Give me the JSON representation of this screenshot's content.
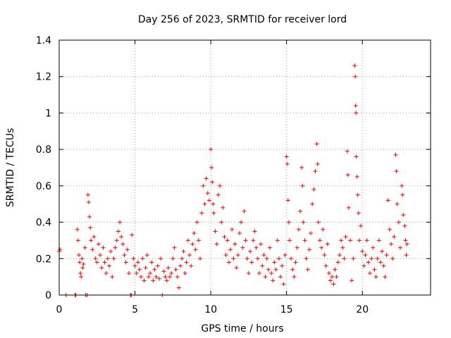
{
  "chart_data": {
    "type": "scatter",
    "title": "Day 256 of 2023, SRMTID for receiver lord",
    "xlabel": "GPS time / hours",
    "ylabel": "SRMTID / TECUs",
    "xlim": [
      0,
      24.5
    ],
    "ylim": [
      0,
      1.4
    ],
    "x_ticks": [
      0,
      5,
      10,
      15,
      20
    ],
    "x_tick_labels": [
      "0",
      "5",
      "10",
      "15",
      "20"
    ],
    "y_ticks": [
      0,
      0.2,
      0.4,
      0.6,
      0.8,
      1.0,
      1.2,
      1.4
    ],
    "y_tick_labels": [
      "0",
      "0.2",
      "0.4",
      "0.6",
      "0.8",
      "1",
      "1.2",
      "1.4"
    ],
    "grid": true,
    "marker": "plus",
    "color": "#ff0000",
    "series": [
      {
        "name": "SRMTID",
        "points": [
          [
            0.0,
            0.24
          ],
          [
            0.05,
            0.25
          ],
          [
            0.45,
            0.0
          ],
          [
            1.05,
            0.0
          ],
          [
            1.1,
            0.0
          ],
          [
            1.75,
            0.0
          ],
          [
            1.85,
            0.0
          ],
          [
            4.7,
            0.0
          ],
          [
            4.75,
            0.0
          ],
          [
            6.8,
            0.0
          ],
          [
            1.2,
            0.36
          ],
          [
            1.25,
            0.3
          ],
          [
            1.3,
            0.22
          ],
          [
            1.35,
            0.18
          ],
          [
            1.4,
            0.12
          ],
          [
            1.45,
            0.1
          ],
          [
            1.5,
            0.2
          ],
          [
            1.55,
            0.15
          ],
          [
            1.6,
            0.17
          ],
          [
            1.7,
            0.26
          ],
          [
            1.9,
            0.55
          ],
          [
            1.95,
            0.51
          ],
          [
            2.0,
            0.43
          ],
          [
            2.05,
            0.37
          ],
          [
            2.1,
            0.3
          ],
          [
            2.2,
            0.25
          ],
          [
            2.3,
            0.32
          ],
          [
            2.4,
            0.2
          ],
          [
            2.5,
            0.18
          ],
          [
            2.6,
            0.28
          ],
          [
            2.7,
            0.22
          ],
          [
            2.8,
            0.15
          ],
          [
            2.9,
            0.26
          ],
          [
            3.0,
            0.18
          ],
          [
            3.1,
            0.12
          ],
          [
            3.2,
            0.2
          ],
          [
            3.3,
            0.16
          ],
          [
            3.4,
            0.24
          ],
          [
            3.5,
            0.1
          ],
          [
            3.6,
            0.2
          ],
          [
            3.7,
            0.26
          ],
          [
            3.8,
            0.3
          ],
          [
            3.9,
            0.35
          ],
          [
            4.0,
            0.4
          ],
          [
            4.1,
            0.32
          ],
          [
            4.2,
            0.28
          ],
          [
            4.3,
            0.22
          ],
          [
            4.4,
            0.18
          ],
          [
            4.5,
            0.25
          ],
          [
            4.6,
            0.12
          ],
          [
            4.8,
            0.33
          ],
          [
            4.9,
            0.2
          ],
          [
            5.0,
            0.16
          ],
          [
            5.1,
            0.12
          ],
          [
            5.2,
            0.18
          ],
          [
            5.3,
            0.14
          ],
          [
            5.4,
            0.1
          ],
          [
            5.5,
            0.2
          ],
          [
            5.6,
            0.08
          ],
          [
            5.7,
            0.15
          ],
          [
            5.8,
            0.22
          ],
          [
            5.9,
            0.1
          ],
          [
            6.0,
            0.12
          ],
          [
            6.1,
            0.18
          ],
          [
            6.2,
            0.08
          ],
          [
            6.3,
            0.14
          ],
          [
            6.4,
            0.1
          ],
          [
            6.5,
            0.16
          ],
          [
            6.6,
            0.09
          ],
          [
            6.7,
            0.2
          ],
          [
            6.9,
            0.13
          ],
          [
            7.0,
            0.1
          ],
          [
            7.1,
            0.08
          ],
          [
            7.2,
            0.15
          ],
          [
            7.3,
            0.1
          ],
          [
            7.4,
            0.12
          ],
          [
            7.5,
            0.2
          ],
          [
            7.6,
            0.26
          ],
          [
            7.7,
            0.14
          ],
          [
            7.8,
            0.1
          ],
          [
            7.9,
            0.04
          ],
          [
            8.0,
            0.16
          ],
          [
            8.1,
            0.2
          ],
          [
            8.2,
            0.24
          ],
          [
            8.3,
            0.12
          ],
          [
            8.4,
            0.18
          ],
          [
            8.5,
            0.3
          ],
          [
            8.6,
            0.22
          ],
          [
            8.7,
            0.16
          ],
          [
            8.8,
            0.28
          ],
          [
            8.9,
            0.34
          ],
          [
            9.0,
            0.25
          ],
          [
            9.1,
            0.4
          ],
          [
            9.2,
            0.3
          ],
          [
            9.3,
            0.2
          ],
          [
            9.4,
            0.45
          ],
          [
            9.5,
            0.6
          ],
          [
            9.6,
            0.5
          ],
          [
            9.7,
            0.64
          ],
          [
            9.8,
            0.56
          ],
          [
            9.9,
            0.52
          ],
          [
            10.0,
            0.8
          ],
          [
            10.05,
            0.7
          ],
          [
            10.1,
            0.62
          ],
          [
            10.15,
            0.5
          ],
          [
            10.2,
            0.45
          ],
          [
            10.3,
            0.35
          ],
          [
            10.4,
            0.28
          ],
          [
            10.5,
            0.55
          ],
          [
            10.6,
            0.6
          ],
          [
            10.7,
            0.4
          ],
          [
            10.8,
            0.48
          ],
          [
            10.9,
            0.32
          ],
          [
            11.0,
            0.22
          ],
          [
            11.1,
            0.3
          ],
          [
            11.2,
            0.18
          ],
          [
            11.3,
            0.25
          ],
          [
            11.4,
            0.36
          ],
          [
            11.5,
            0.2
          ],
          [
            11.6,
            0.28
          ],
          [
            11.7,
            0.15
          ],
          [
            11.8,
            0.22
          ],
          [
            11.9,
            0.34
          ],
          [
            12.0,
            0.4
          ],
          [
            12.1,
            0.26
          ],
          [
            12.2,
            0.46
          ],
          [
            12.3,
            0.3
          ],
          [
            12.4,
            0.2
          ],
          [
            12.5,
            0.12
          ],
          [
            12.6,
            0.24
          ],
          [
            12.7,
            0.18
          ],
          [
            12.8,
            0.3
          ],
          [
            12.9,
            0.35
          ],
          [
            13.0,
            0.26
          ],
          [
            13.1,
            0.2
          ],
          [
            13.2,
            0.12
          ],
          [
            13.3,
            0.28
          ],
          [
            13.4,
            0.16
          ],
          [
            13.5,
            0.22
          ],
          [
            13.6,
            0.1
          ],
          [
            13.7,
            0.2
          ],
          [
            13.8,
            0.14
          ],
          [
            13.9,
            0.26
          ],
          [
            14.0,
            0.12
          ],
          [
            14.1,
            0.08
          ],
          [
            14.2,
            0.18
          ],
          [
            14.3,
            0.14
          ],
          [
            14.4,
            0.3
          ],
          [
            14.5,
            0.2
          ],
          [
            14.6,
            0.1
          ],
          [
            14.7,
            0.16
          ],
          [
            14.8,
            0.06
          ],
          [
            14.9,
            0.22
          ],
          [
            15.0,
            0.76
          ],
          [
            15.05,
            0.72
          ],
          [
            15.1,
            0.52
          ],
          [
            15.15,
            0.4
          ],
          [
            15.2,
            0.3
          ],
          [
            15.3,
            0.2
          ],
          [
            15.4,
            0.14
          ],
          [
            15.5,
            0.1
          ],
          [
            15.6,
            0.18
          ],
          [
            15.7,
            0.26
          ],
          [
            15.8,
            0.36
          ],
          [
            15.9,
            0.46
          ],
          [
            16.0,
            0.7
          ],
          [
            16.05,
            0.6
          ],
          [
            16.1,
            0.4
          ],
          [
            16.2,
            0.3
          ],
          [
            16.3,
            0.2
          ],
          [
            16.4,
            0.14
          ],
          [
            16.5,
            0.25
          ],
          [
            16.6,
            0.34
          ],
          [
            16.7,
            0.5
          ],
          [
            16.8,
            0.58
          ],
          [
            16.9,
            0.68
          ],
          [
            17.0,
            0.83
          ],
          [
            17.05,
            0.72
          ],
          [
            17.1,
            0.4
          ],
          [
            17.2,
            0.3
          ],
          [
            17.3,
            0.26
          ],
          [
            17.4,
            0.36
          ],
          [
            17.5,
            0.22
          ],
          [
            17.6,
            0.16
          ],
          [
            17.7,
            0.28
          ],
          [
            17.8,
            0.12
          ],
          [
            17.9,
            0.08
          ],
          [
            18.0,
            0.1
          ],
          [
            18.1,
            0.06
          ],
          [
            18.2,
            0.14
          ],
          [
            18.3,
            0.1
          ],
          [
            18.4,
            0.18
          ],
          [
            18.5,
            0.22
          ],
          [
            18.6,
            0.3
          ],
          [
            18.7,
            0.26
          ],
          [
            18.8,
            0.2
          ],
          [
            18.9,
            0.32
          ],
          [
            19.0,
            0.79
          ],
          [
            19.05,
            0.66
          ],
          [
            19.1,
            0.48
          ],
          [
            19.2,
            0.3
          ],
          [
            19.3,
            0.08
          ],
          [
            19.4,
            0.2
          ],
          [
            19.5,
            1.26
          ],
          [
            19.53,
            1.2
          ],
          [
            19.56,
            1.04
          ],
          [
            19.58,
            1.0
          ],
          [
            19.6,
            0.76
          ],
          [
            19.65,
            0.65
          ],
          [
            19.7,
            0.55
          ],
          [
            19.75,
            0.45
          ],
          [
            19.8,
            0.3
          ],
          [
            19.9,
            0.38
          ],
          [
            20.0,
            0.24
          ],
          [
            20.1,
            0.16
          ],
          [
            20.2,
            0.22
          ],
          [
            20.3,
            0.3
          ],
          [
            20.4,
            0.18
          ],
          [
            20.5,
            0.12
          ],
          [
            20.6,
            0.2
          ],
          [
            20.7,
            0.26
          ],
          [
            20.8,
            0.14
          ],
          [
            20.9,
            0.1
          ],
          [
            21.0,
            0.2
          ],
          [
            21.1,
            0.3
          ],
          [
            21.2,
            0.18
          ],
          [
            21.3,
            0.24
          ],
          [
            21.4,
            0.16
          ],
          [
            21.5,
            0.1
          ],
          [
            21.6,
            0.22
          ],
          [
            21.7,
            0.52
          ],
          [
            21.8,
            0.36
          ],
          [
            21.9,
            0.28
          ],
          [
            22.0,
            0.2
          ],
          [
            22.1,
            0.32
          ],
          [
            22.2,
            0.77
          ],
          [
            22.25,
            0.68
          ],
          [
            22.3,
            0.5
          ],
          [
            22.4,
            0.4
          ],
          [
            22.5,
            0.26
          ],
          [
            22.6,
            0.6
          ],
          [
            22.65,
            0.55
          ],
          [
            22.7,
            0.44
          ],
          [
            22.8,
            0.38
          ],
          [
            22.85,
            0.3
          ],
          [
            22.9,
            0.22
          ],
          [
            22.95,
            0.28
          ]
        ]
      }
    ]
  }
}
